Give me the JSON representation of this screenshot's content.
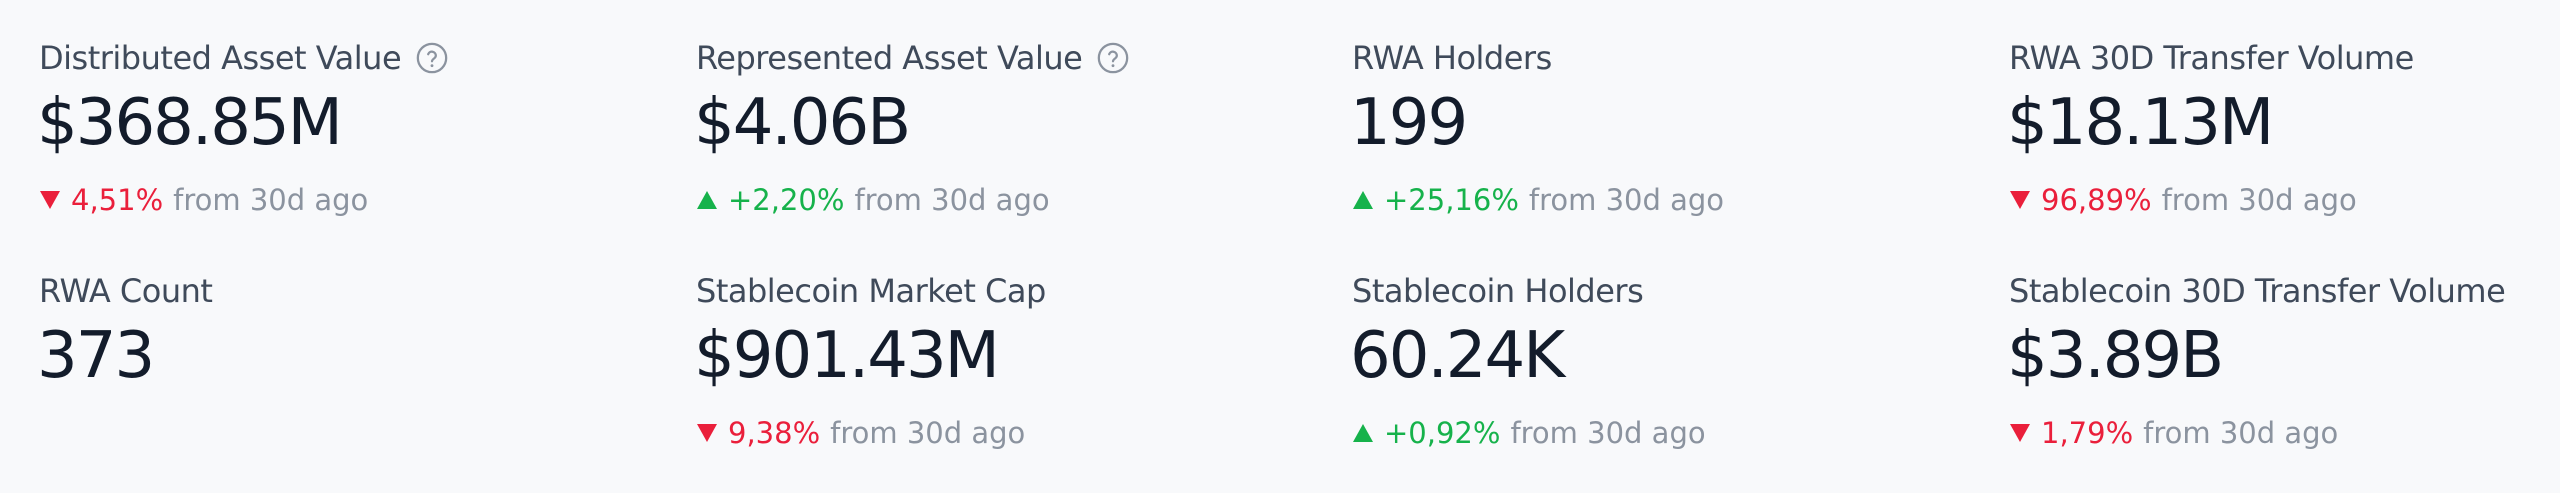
{
  "metrics": [
    {
      "label": "Distributed Asset Value",
      "value": "$368.85M",
      "change": "4,51%",
      "suffix": "from 30d ago"
    },
    {
      "label": "Represented Asset Value",
      "value": "$4.06B",
      "change": "+2,20%",
      "suffix": "from 30d ago"
    },
    {
      "label": "RWA Holders",
      "value": "199",
      "change": "+25,16%",
      "suffix": "from 30d ago"
    },
    {
      "label": "RWA 30D Transfer Volume",
      "value": "$18.13M",
      "change": "96,89%",
      "suffix": "from 30d ago"
    },
    {
      "label": "RWA Count",
      "value": "373"
    },
    {
      "label": "Stablecoin Market Cap",
      "value": "$901.43M",
      "change": "9,38%",
      "suffix": "from 30d ago"
    },
    {
      "label": "Stablecoin Holders",
      "value": "60.24K",
      "change": "+0,92%",
      "suffix": "from 30d ago"
    },
    {
      "label": "Stablecoin 30D Transfer Volume",
      "value": "$3.89B",
      "change": "1,79%",
      "suffix": "from 30d ago"
    }
  ]
}
